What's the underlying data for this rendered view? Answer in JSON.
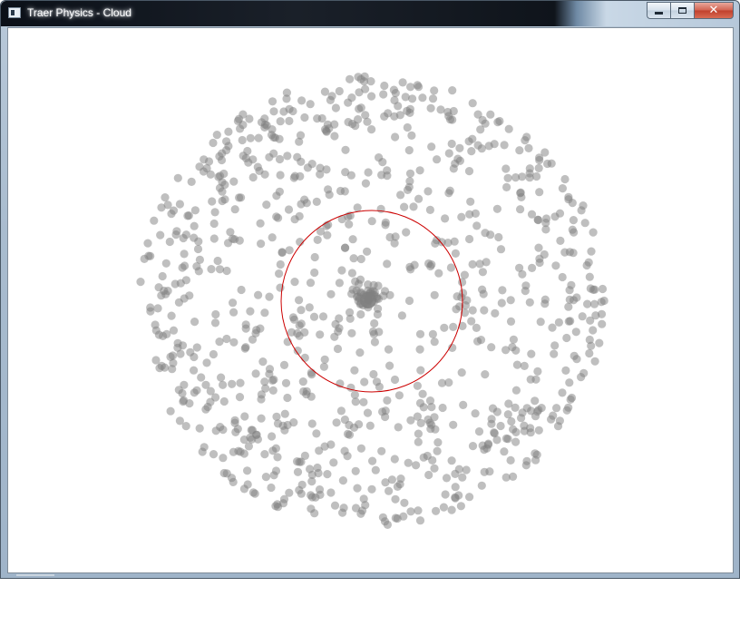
{
  "window": {
    "title": "Traer Physics - Cloud"
  },
  "controls": {
    "minimize_icon": "minimize-icon",
    "maximize_icon": "maximize-icon",
    "close_icon": "close-icon",
    "close_glyph": "✕"
  },
  "canvas": {
    "background": "#ffffff",
    "particle_color": "#808080",
    "ring_color": "#cc0000"
  }
}
